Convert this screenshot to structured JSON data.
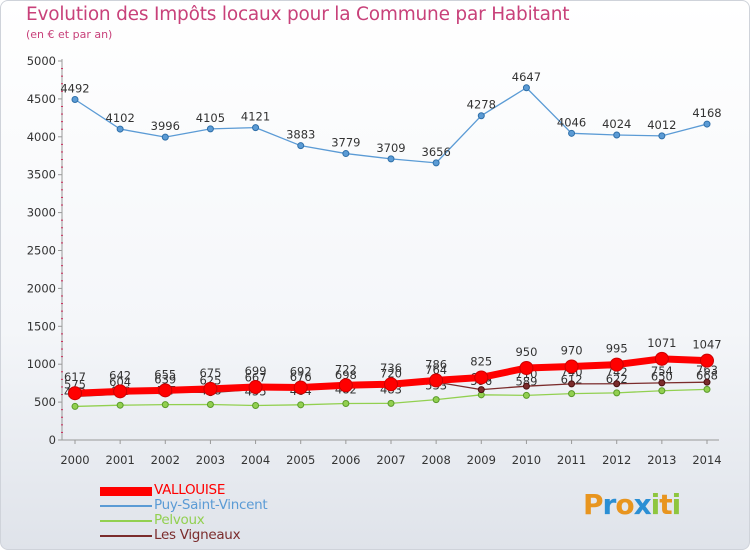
{
  "header": {
    "title": "Evolution des Impôts locaux pour la Commune par Habitant",
    "subtitle": "(en € et par an)"
  },
  "colors": {
    "title": "#c8417a",
    "background": "#ffffff",
    "grid": "#cc2a5a"
  },
  "logo": {
    "text": "Proxiti",
    "letters": [
      {
        "ch": "P",
        "color": "#e8951f"
      },
      {
        "ch": "r",
        "color": "#2b8fd4"
      },
      {
        "ch": "o",
        "color": "#e8951f"
      },
      {
        "ch": "x",
        "color": "#2b8fd4"
      },
      {
        "ch": "i",
        "color": "#8ec63f"
      },
      {
        "ch": "t",
        "color": "#e8951f"
      },
      {
        "ch": "i",
        "color": "#8ec63f"
      }
    ]
  },
  "chart_data": {
    "type": "line",
    "title": "Evolution des Impôts locaux pour la Commune par Habitant",
    "subtitle": "(en € et par an)",
    "xlabel": "",
    "ylabel": "",
    "x": [
      "2000",
      "2001",
      "2002",
      "2003",
      "2004",
      "2005",
      "2006",
      "2007",
      "2008",
      "2009",
      "2010",
      "2011",
      "2012",
      "2013",
      "2014"
    ],
    "ylim": [
      0,
      5000
    ],
    "yticks": [
      0,
      500,
      1000,
      1500,
      2000,
      2500,
      3000,
      3500,
      4000,
      4500,
      5000
    ],
    "grid": false,
    "legend_position": "bottom-left",
    "series": [
      {
        "name": "Puy-Saint-Vincent",
        "color": "#5b9bd5",
        "values": [
          4492,
          4102,
          3996,
          4105,
          4121,
          3883,
          3779,
          3709,
          3656,
          4278,
          4647,
          4046,
          4024,
          4012,
          4168
        ]
      },
      {
        "name": "Pelvoux",
        "color": "#92d050",
        "values": [
          443,
          459,
          467,
          468,
          455,
          464,
          482,
          483,
          533,
          596,
          589,
          612,
          622,
          650,
          668
        ]
      },
      {
        "name": "Les Vigneaux",
        "color": "#7b2c2c",
        "values": [
          575,
          604,
          639,
          625,
          667,
          676,
          698,
          720,
          764,
          665,
          710,
          740,
          742,
          754,
          763
        ]
      },
      {
        "name": "VALLOUISE",
        "color": "#ff0000",
        "values": [
          617,
          642,
          655,
          675,
          699,
          692,
          722,
          736,
          786,
          825,
          950,
          970,
          995,
          1071,
          1047
        ]
      }
    ],
    "data_labels": {
      "Puy-Saint-Vincent": [
        "4492",
        "4102",
        "3996",
        "4105",
        "4121",
        "3883",
        "3779",
        "3709",
        "3656",
        "4278",
        "4647",
        "4046",
        "4024",
        "4012",
        "4168"
      ],
      "Pelvoux": [
        "443",
        "459",
        "467",
        "468",
        "455",
        "464",
        "482",
        "483",
        "533",
        "596",
        "589",
        "612",
        "622",
        "650",
        "668"
      ],
      "Les Vigneaux": [
        "575",
        "604",
        "639",
        "625",
        "667",
        "676",
        "698",
        "720",
        "764",
        "665",
        "710",
        "740",
        "742",
        "754",
        "763"
      ],
      "VALLOUISE": [
        "617",
        "642",
        "655",
        "675",
        "699",
        "692",
        "722",
        "736",
        "786",
        "825",
        "950",
        "970",
        "995",
        "1071",
        "1047"
      ]
    }
  },
  "legend": [
    {
      "label": "VALLOUISE",
      "color": "#ff0000"
    },
    {
      "label": "Puy-Saint-Vincent",
      "color": "#5b9bd5"
    },
    {
      "label": "Pelvoux",
      "color": "#92d050"
    },
    {
      "label": "Les Vigneaux",
      "color": "#7b2c2c"
    }
  ]
}
